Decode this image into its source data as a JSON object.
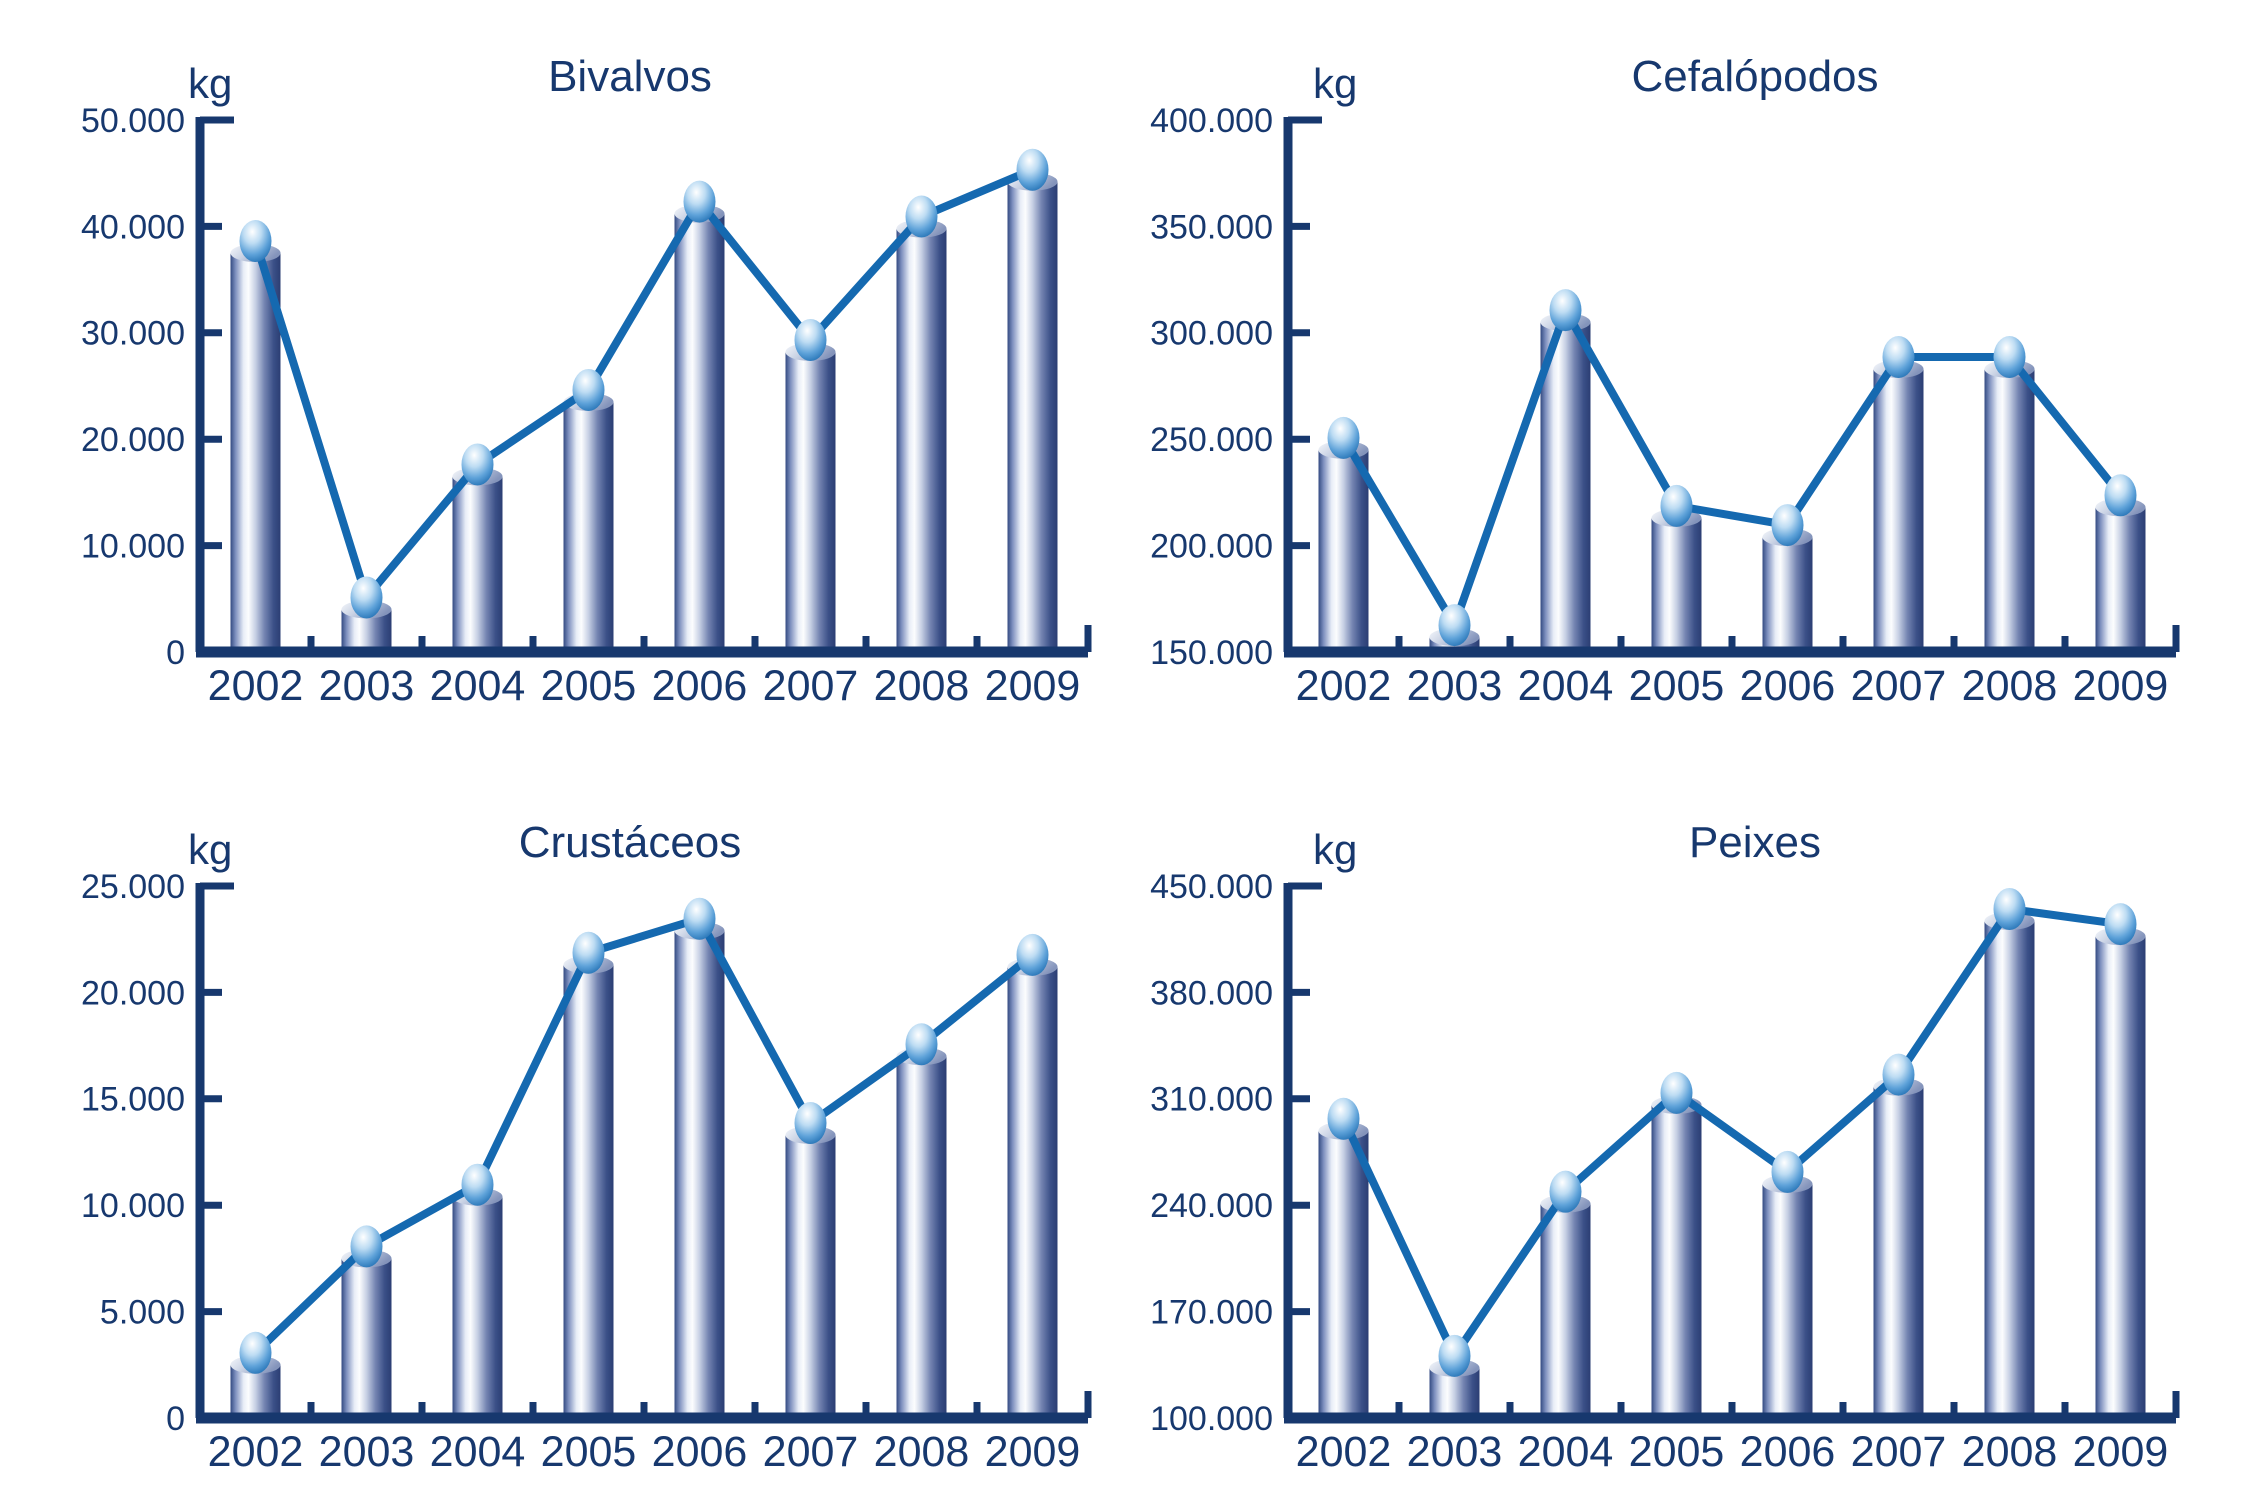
{
  "page": {
    "background": "#ffffff",
    "grid": "2x2"
  },
  "colors": {
    "axis": "#17386e",
    "text": "#17386e",
    "line": "#1569b0",
    "bar_gradient": [
      {
        "o": 0.0,
        "c": "#334a82"
      },
      {
        "o": 0.1,
        "c": "#7d8fbe"
      },
      {
        "o": 0.26,
        "c": "#e8edf7"
      },
      {
        "o": 0.36,
        "c": "#fcfdfe"
      },
      {
        "o": 0.5,
        "c": "#c7d0e4"
      },
      {
        "o": 0.68,
        "c": "#7484b1"
      },
      {
        "o": 0.86,
        "c": "#3b5088"
      },
      {
        "o": 1.0,
        "c": "#2b3e73"
      }
    ],
    "bar_top_gradient": [
      {
        "o": 0.0,
        "c": "#f7f9fc"
      },
      {
        "o": 0.45,
        "c": "#c9d2e4"
      },
      {
        "o": 1.0,
        "c": "#8494bb"
      }
    ],
    "sphere_gradient": [
      {
        "o": 0.0,
        "c": "#ffffff"
      },
      {
        "o": 0.35,
        "c": "#bddcf3"
      },
      {
        "o": 0.68,
        "c": "#5ea2d9"
      },
      {
        "o": 1.0,
        "c": "#1d6cb0"
      }
    ]
  },
  "chart_data": [
    {
      "type": "bar",
      "overlay": "line-with-markers",
      "title": "Bivalvos",
      "unit_label": "kg",
      "categories": [
        "2002",
        "2003",
        "2004",
        "2005",
        "2006",
        "2007",
        "2008",
        "2009"
      ],
      "values": [
        37500,
        4000,
        16500,
        23500,
        41200,
        28200,
        39800,
        44200
      ],
      "ylim": [
        0,
        50000
      ],
      "ytick_step": 10000,
      "ytick_labels": [
        "0",
        "10.000",
        "20.000",
        "30.000",
        "40.000",
        "50.000"
      ],
      "grid": "off",
      "legend": "none"
    },
    {
      "type": "bar",
      "overlay": "line-with-markers",
      "title": "Cefalópodos",
      "unit_label": "kg",
      "categories": [
        "2002",
        "2003",
        "2004",
        "2005",
        "2006",
        "2007",
        "2008",
        "2009"
      ],
      "values": [
        245000,
        157000,
        305000,
        213000,
        204000,
        283000,
        283000,
        218000
      ],
      "ylim": [
        150000,
        400000
      ],
      "ytick_step": 50000,
      "ytick_labels": [
        "150.000",
        "200.000",
        "250.000",
        "300.000",
        "350.000",
        "400.000"
      ],
      "grid": "off",
      "legend": "none"
    },
    {
      "type": "bar",
      "overlay": "line-with-markers",
      "title": "Crustáceos",
      "unit_label": "kg",
      "categories": [
        "2002",
        "2003",
        "2004",
        "2005",
        "2006",
        "2007",
        "2008",
        "2009"
      ],
      "values": [
        2500,
        7500,
        10400,
        21300,
        22900,
        13300,
        17000,
        21200
      ],
      "ylim": [
        0,
        25000
      ],
      "ytick_step": 5000,
      "ytick_labels": [
        "0",
        "5.000",
        "10.000",
        "15.000",
        "20.000",
        "25.000"
      ],
      "grid": "off",
      "legend": "none"
    },
    {
      "type": "bar",
      "overlay": "line-with-markers",
      "title": "Peixes",
      "unit_label": "kg",
      "categories": [
        "2002",
        "2003",
        "2004",
        "2005",
        "2006",
        "2007",
        "2008",
        "2009"
      ],
      "values": [
        289000,
        133000,
        241000,
        306000,
        254000,
        318000,
        427000,
        417000
      ],
      "ylim": [
        100000,
        450000
      ],
      "ytick_step": 70000,
      "ytick_labels": [
        "100.000",
        "170.000",
        "240.000",
        "310.000",
        "380.000",
        "450.000"
      ],
      "grid": "off",
      "legend": "none"
    }
  ]
}
